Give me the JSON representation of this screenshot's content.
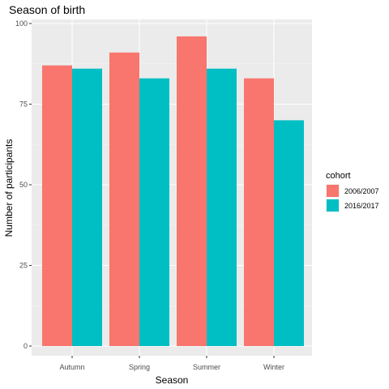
{
  "chart_data": {
    "type": "bar",
    "title": "Season of birth",
    "xlabel": "Season",
    "ylabel": "Number of participants",
    "categories": [
      "Autumn",
      "Spring",
      "Summer",
      "Winter"
    ],
    "series": [
      {
        "name": "2006/2007",
        "values": [
          87,
          91,
          96,
          83
        ]
      },
      {
        "name": "2016/2017",
        "values": [
          86,
          83,
          86,
          70
        ]
      }
    ],
    "ylim": [
      0,
      100
    ],
    "yticks": [
      0,
      25,
      50,
      75,
      100
    ],
    "legend": {
      "title": "cohort",
      "position": "right"
    },
    "colors": {
      "2006/2007": "#F8766D",
      "2016/2017": "#00BFC4",
      "panel": "#EBEBEB",
      "grid_major": "#FFFFFF",
      "grid_minor": "#F5F5F5"
    },
    "grid": true
  }
}
